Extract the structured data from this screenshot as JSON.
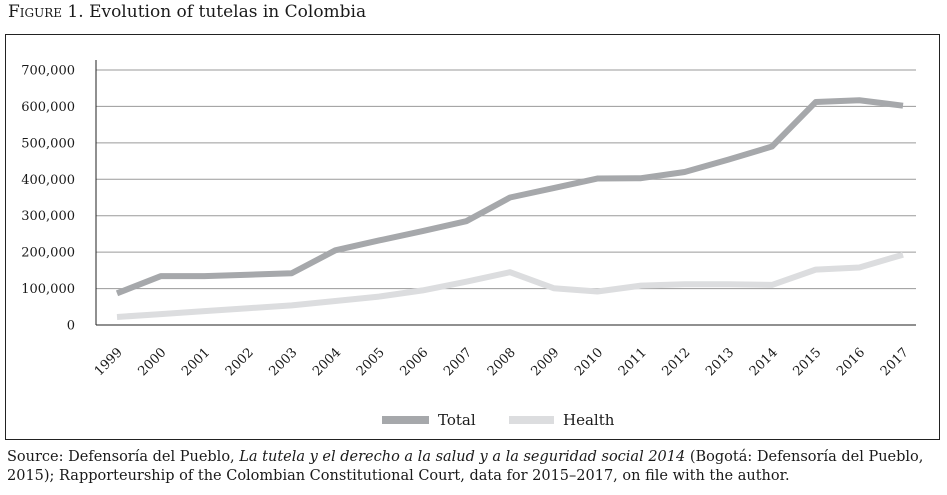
{
  "figure": {
    "label": "Figure 1.",
    "title": "Evolution of tutelas in Colombia"
  },
  "source": {
    "prefix": "Source: Defensoría del Pueblo, ",
    "italic": "La tutela y el derecho a la salud y a la seguridad social 2014",
    "suffix": " (Bogotá: Defensoría del Pueblo, 2015); Rapporteurship of the Colombian Constitutional Court, data for 2015–2017, on file with the author."
  },
  "chart_data": {
    "type": "line",
    "title": "",
    "xlabel": "",
    "ylabel": "",
    "x": [
      "1999",
      "2000",
      "2001",
      "2002",
      "2003",
      "2004",
      "2005",
      "2006",
      "2007",
      "2008",
      "2009",
      "2010",
      "2011",
      "2012",
      "2013",
      "2014",
      "2015",
      "2016",
      "2017"
    ],
    "ylim": [
      0,
      700000
    ],
    "yticks": [
      0,
      100000,
      200000,
      300000,
      400000,
      500000,
      600000,
      700000
    ],
    "ytick_labels": [
      "0",
      "100,000",
      "200,000",
      "300,000",
      "400,000",
      "500,000",
      "600,000",
      "700,000"
    ],
    "grid": true,
    "legend": "bottom-center",
    "series": [
      {
        "name": "Total",
        "color": "#a6a8ab",
        "values": [
          87000,
          134000,
          134000,
          138000,
          142000,
          205000,
          232000,
          258000,
          285000,
          350000,
          376000,
          402000,
          403000,
          420000,
          454000,
          490000,
          612000,
          617000,
          602000
        ]
      },
      {
        "name": "Health",
        "color": "#dcdddf",
        "values": [
          22000,
          30000,
          38000,
          46000,
          54000,
          66000,
          78000,
          95000,
          119000,
          145000,
          101000,
          92000,
          108000,
          112000,
          112000,
          110000,
          152000,
          158000,
          193000
        ]
      }
    ]
  }
}
